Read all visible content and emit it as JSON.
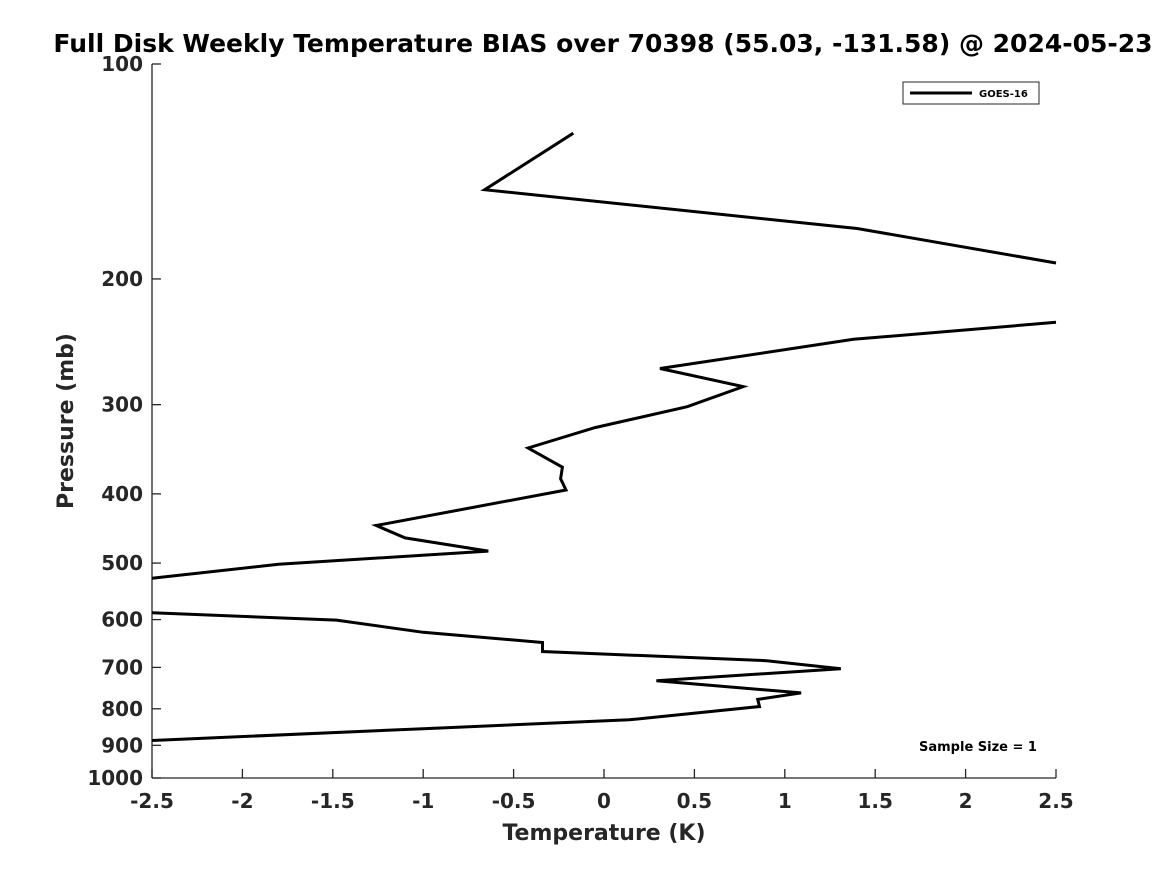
{
  "chart_data": {
    "type": "line",
    "title": "Full Disk Weekly Temperature BIAS over 70398 (55.03, -131.58) @ 2024-05-23",
    "xlabel": "Temperature (K)",
    "ylabel": "Pressure (mb)",
    "xlim": [
      -2.5,
      2.5
    ],
    "ylim": [
      100,
      1000
    ],
    "y_scale": "log",
    "y_reversed": true,
    "x_ticks": [
      "-2.5",
      "-2",
      "-1.5",
      "-1",
      "-0.5",
      "0",
      "0.5",
      "1",
      "1.5",
      "2",
      "2.5"
    ],
    "y_ticks": [
      "100",
      "200",
      "300",
      "400",
      "500",
      "600",
      "700",
      "800",
      "900",
      "1000"
    ],
    "legend_position": "top-right",
    "series": [
      {
        "name": "GOES-16",
        "color": "#000000",
        "segments": [
          [
            [
              -0.17,
              125
            ],
            [
              -0.66,
              150
            ],
            [
              1.4,
              170
            ],
            [
              2.5,
              190
            ]
          ],
          [
            [
              2.5,
              230
            ],
            [
              1.38,
              243
            ],
            [
              0.31,
              267
            ],
            [
              0.77,
              283
            ],
            [
              0.46,
              302
            ],
            [
              -0.05,
              323
            ],
            [
              -0.42,
              345
            ],
            [
              -0.23,
              367
            ],
            [
              -0.24,
              381
            ],
            [
              -0.21,
              395
            ],
            [
              -1.26,
              443
            ],
            [
              -1.1,
              461
            ],
            [
              -0.64,
              481
            ],
            [
              -1.8,
              502
            ],
            [
              -2.5,
              525
            ]
          ],
          [
            [
              -2.5,
              587
            ],
            [
              -1.48,
              601
            ],
            [
              -1.0,
              625
            ],
            [
              -0.34,
              646
            ],
            [
              -0.34,
              665
            ],
            [
              0.9,
              685
            ],
            [
              1.31,
              703
            ],
            [
              0.29,
              731
            ],
            [
              1.09,
              760
            ],
            [
              0.85,
              776
            ],
            [
              0.86,
              794
            ],
            [
              0.14,
              829
            ],
            [
              -1.0,
              853
            ],
            [
              -2.5,
              886
            ]
          ]
        ]
      }
    ],
    "annotation": "Sample Size = 1"
  }
}
